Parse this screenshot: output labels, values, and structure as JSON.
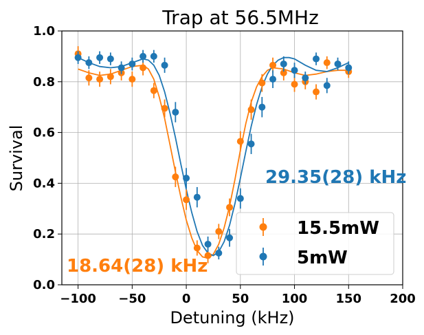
{
  "chart_data": {
    "type": "scatter",
    "title": "Trap at 56.5MHz",
    "xlabel": "Detuning (kHz)",
    "ylabel": "Survival",
    "xlim": [
      -115,
      200
    ],
    "ylim": [
      0.0,
      1.0
    ],
    "xticks": [
      "−100",
      "−50",
      "0",
      "50",
      "100",
      "150",
      "200"
    ],
    "xtick_values": [
      -100,
      -50,
      0,
      50,
      100,
      150,
      200
    ],
    "yticks": [
      "0.0",
      "0.2",
      "0.4",
      "0.6",
      "0.8",
      "1.0"
    ],
    "ytick_values": [
      0.0,
      0.2,
      0.4,
      0.6,
      0.8,
      1.0
    ],
    "grid": true,
    "legend": {
      "placement": "lower-right",
      "entries": [
        "15.5mW",
        "5mW"
      ]
    },
    "colors": {
      "orange": "#ff7f0e",
      "blue": "#1f77b4"
    },
    "series": [
      {
        "name": "15.5mW",
        "color": "#ff7f0e",
        "x": [
          -100,
          -90,
          -80,
          -70,
          -60,
          -50,
          -40,
          -30,
          -20,
          -10,
          0,
          10,
          20,
          30,
          40,
          50,
          60,
          70,
          80,
          90,
          100,
          110,
          120,
          130,
          150
        ],
        "y": [
          0.91,
          0.815,
          0.81,
          0.82,
          0.835,
          0.81,
          0.855,
          0.765,
          0.695,
          0.425,
          0.335,
          0.145,
          0.115,
          0.21,
          0.305,
          0.565,
          0.69,
          0.795,
          0.865,
          0.835,
          0.79,
          0.8,
          0.76,
          0.875,
          0.84
        ],
        "yerr": [
          0.03,
          0.03,
          0.03,
          0.03,
          0.03,
          0.03,
          0.03,
          0.03,
          0.035,
          0.04,
          0.04,
          0.03,
          0.03,
          0.03,
          0.035,
          0.04,
          0.04,
          0.035,
          0.03,
          0.03,
          0.03,
          0.03,
          0.03,
          0.025,
          0.025
        ],
        "fit": {
          "x": [
            -100,
            -90,
            -80,
            -70,
            -60,
            -50,
            -40,
            -35,
            -30,
            -25,
            -20,
            -15,
            -10,
            -5,
            0,
            5,
            10,
            15,
            20,
            25,
            30,
            35,
            40,
            45,
            50,
            55,
            60,
            65,
            70,
            75,
            80,
            90,
            100,
            110,
            120,
            130,
            140,
            150
          ],
          "y": [
            0.85,
            0.835,
            0.825,
            0.83,
            0.845,
            0.86,
            0.865,
            0.85,
            0.81,
            0.74,
            0.655,
            0.55,
            0.445,
            0.345,
            0.255,
            0.185,
            0.135,
            0.11,
            0.105,
            0.12,
            0.16,
            0.225,
            0.31,
            0.415,
            0.53,
            0.635,
            0.72,
            0.78,
            0.82,
            0.845,
            0.855,
            0.85,
            0.835,
            0.825,
            0.83,
            0.84,
            0.845,
            0.845
          ]
        }
      },
      {
        "name": "5mW",
        "color": "#1f77b4",
        "x": [
          -100,
          -90,
          -80,
          -70,
          -60,
          -50,
          -40,
          -30,
          -20,
          -10,
          0,
          10,
          20,
          30,
          40,
          50,
          60,
          70,
          80,
          90,
          100,
          110,
          120,
          130,
          140,
          150
        ],
        "y": [
          0.895,
          0.875,
          0.895,
          0.89,
          0.855,
          0.87,
          0.9,
          0.9,
          0.865,
          0.68,
          0.42,
          0.345,
          0.16,
          0.125,
          0.185,
          0.34,
          0.555,
          0.7,
          0.81,
          0.87,
          0.845,
          0.815,
          0.89,
          0.785,
          0.87,
          0.855
        ],
        "yerr": [
          0.025,
          0.025,
          0.025,
          0.025,
          0.025,
          0.025,
          0.025,
          0.025,
          0.03,
          0.04,
          0.04,
          0.04,
          0.03,
          0.025,
          0.035,
          0.04,
          0.04,
          0.04,
          0.035,
          0.03,
          0.03,
          0.025,
          0.025,
          0.03,
          0.025,
          0.025
        ],
        "fit": {
          "x": [
            -100,
            -90,
            -80,
            -70,
            -60,
            -50,
            -40,
            -35,
            -30,
            -25,
            -20,
            -15,
            -10,
            -5,
            0,
            5,
            10,
            15,
            20,
            25,
            30,
            35,
            40,
            45,
            50,
            55,
            60,
            65,
            70,
            75,
            80,
            85,
            90,
            95,
            100,
            110,
            120,
            130,
            140,
            150
          ],
          "y": [
            0.895,
            0.875,
            0.86,
            0.855,
            0.86,
            0.875,
            0.89,
            0.885,
            0.865,
            0.825,
            0.76,
            0.675,
            0.58,
            0.475,
            0.375,
            0.285,
            0.21,
            0.155,
            0.125,
            0.115,
            0.13,
            0.17,
            0.235,
            0.32,
            0.42,
            0.525,
            0.625,
            0.71,
            0.78,
            0.83,
            0.865,
            0.885,
            0.895,
            0.895,
            0.89,
            0.865,
            0.845,
            0.84,
            0.855,
            0.875
          ]
        }
      }
    ],
    "annotations": [
      {
        "text": "18.64(28) kHz",
        "color": "#ff7f0e"
      },
      {
        "text": "29.35(28) kHz",
        "color": "#1f77b4"
      }
    ]
  }
}
